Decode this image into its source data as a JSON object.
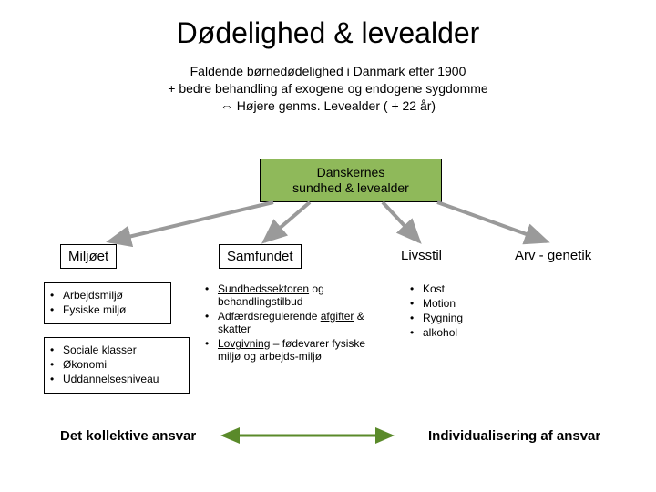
{
  "title": "Dødelighed & levealder",
  "subtitle_line1": "Faldende børnedødelighed i Danmark efter 1900",
  "subtitle_line2": "+ bedre behandling af exogene og endogene sygdomme",
  "subtitle_line3": "⇔ Højere genms. Levealder ( + 22 år)",
  "center_box": {
    "line1": "Danskernes",
    "line2": "sundhed & levealder"
  },
  "headings": {
    "miljoet": "Miljøet",
    "samfundet": "Samfundet",
    "livsstil": "Livsstil",
    "arv": "Arv - genetik"
  },
  "miljoet_box1": [
    "Arbejdsmiljø",
    "Fysiske miljø"
  ],
  "miljoet_box2": [
    "Sociale klasser",
    "Økonomi",
    "Uddannelsesniveau"
  ],
  "samfundet_items": [
    {
      "pre": "",
      "u": "Sundhedssektoren",
      "post": " og behandlingstilbud"
    },
    {
      "pre": "Adfærdsregulerende ",
      "u": "afgifter",
      "post": " & skatter"
    },
    {
      "pre": "",
      "u": "Lovgivning",
      "post": " – fødevarer fysiske miljø og arbejds-miljø"
    }
  ],
  "livsstil_items": [
    "Kost",
    "Motion",
    "Rygning",
    "alkohol"
  ],
  "bottom_left": "Det kollektive ansvar",
  "bottom_right": "Individualisering af ansvar",
  "colors": {
    "center_fill": "#8fb95a",
    "arrow": "#9a9a9a",
    "green_stroke": "#5a8a2a",
    "text": "#000000",
    "bg": "#ffffff"
  }
}
